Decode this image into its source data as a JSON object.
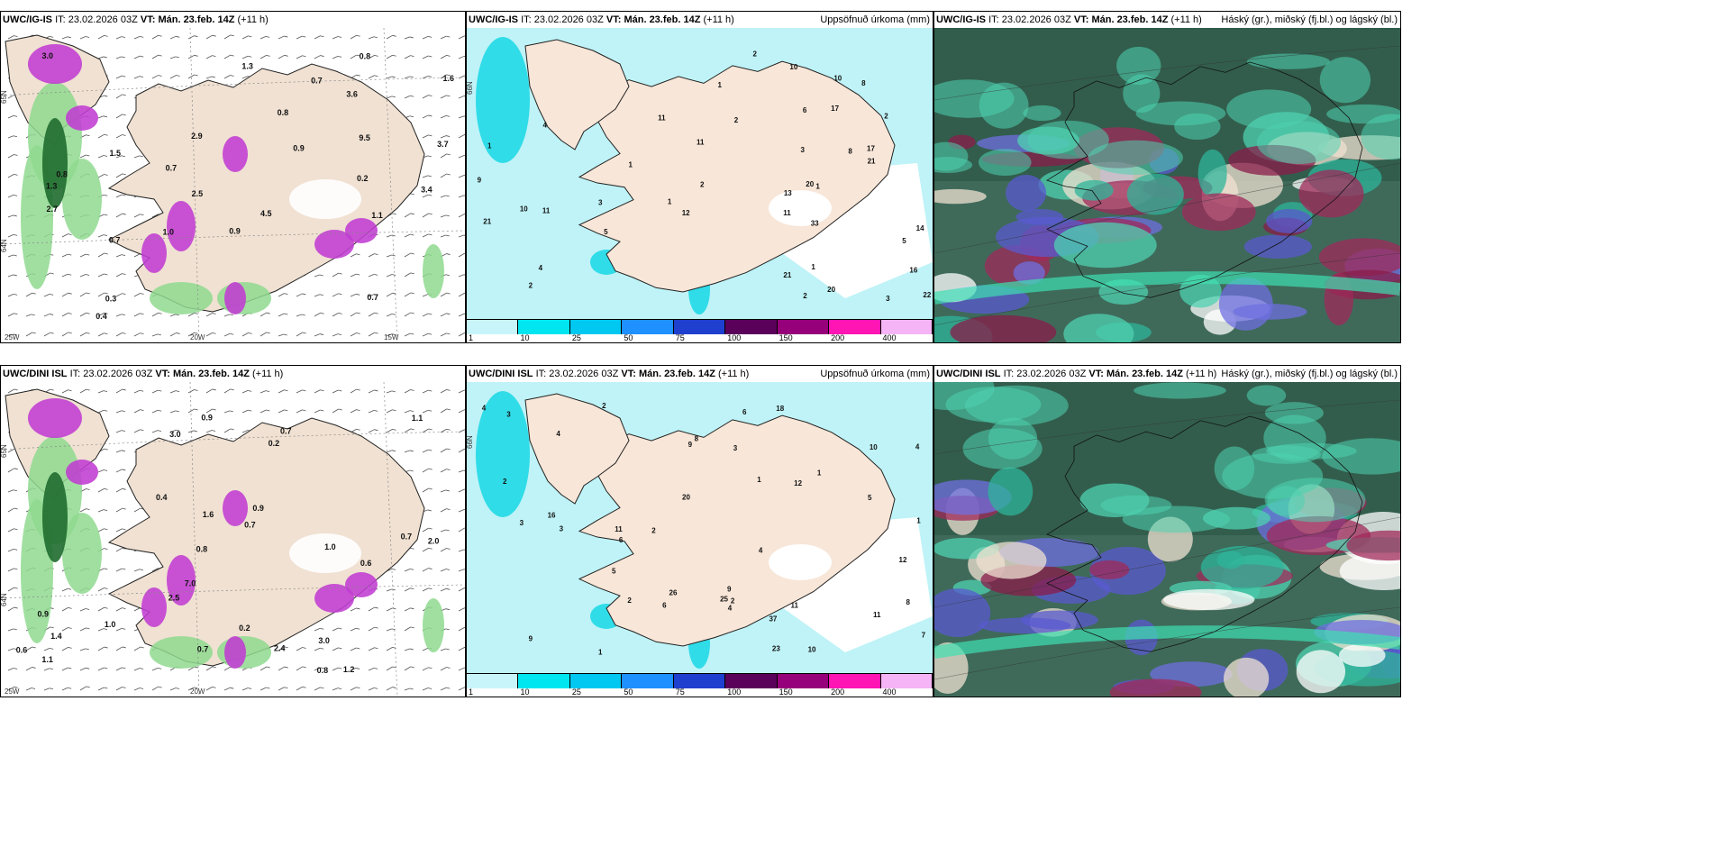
{
  "legend": {
    "ticks": [
      "1",
      "10",
      "25",
      "50",
      "75",
      "100",
      "150",
      "200",
      "400"
    ],
    "colors": [
      "#c8f5fa",
      "#00e6f0",
      "#00c8f0",
      "#1e90ff",
      "#1f3fcf",
      "#5a005a",
      "#96007a",
      "#ff14b4",
      "#f5b4f5"
    ]
  },
  "rows": [
    {
      "model": "UWC/IG-IS",
      "it_label": "IT:",
      "it": "23.02.2026 03Z",
      "vt_label": "VT:",
      "vt": "Mán. 23.feb. 14Z",
      "lead": "(+11 h)",
      "precip_title": "Uppsöfnuð úrkoma (mm)",
      "cloud_title": "Háský (gr.), miðský (fj.bl.) og lágský (bl.)",
      "lat_labels": [
        "65N",
        "64N",
        "66N"
      ],
      "lon_labels": [
        "25W",
        "20W",
        "15W"
      ],
      "wind_values": [
        "2.7",
        "0.2",
        "3.6",
        "3.4",
        "0.3",
        "1.5",
        "9.5",
        "3.0",
        "0.7",
        "3.7",
        "0.7",
        "0.8",
        "0.7",
        "2.5",
        "0.4",
        "0.9",
        "4.5",
        "1.1",
        "0.8",
        "0.9",
        "1.0",
        "0.8",
        "1.3",
        "1.3",
        "2.9",
        "1.6",
        "0.7"
      ],
      "precip_values": [
        "11",
        "14",
        "8",
        "5",
        "21",
        "17",
        "17",
        "11",
        "16",
        "20",
        "20",
        "13",
        "21",
        "33",
        "5",
        "3",
        "8",
        "10",
        "10",
        "11",
        "12",
        "9",
        "3",
        "10",
        "21",
        "4",
        "4",
        "6",
        "22",
        "11",
        "2",
        "2",
        "1",
        "1",
        "1",
        "2",
        "2",
        "2",
        "1",
        "2",
        "1",
        "3",
        "1"
      ]
    },
    {
      "model": "UWC/DINI ISL",
      "it_label": "IT:",
      "it": "23.02.2026 03Z",
      "vt_label": "VT:",
      "vt": "Mán. 23.feb. 14Z",
      "lead": "(+11 h)",
      "precip_title": "Uppsöfnuð úrkoma (mm)",
      "cloud_title": "Háský (gr.), miðský (fj.bl.) og lágský (bl.)",
      "lat_labels": [
        "65N",
        "64N",
        "66N"
      ],
      "lon_labels": [
        "25W",
        "20W"
      ],
      "wind_values": [
        "3.0",
        "0.2",
        "0.8",
        "2.0",
        "0.6",
        "0.2",
        "0.7",
        "0.6",
        "0.9",
        "1.6",
        "0.7",
        "2.5",
        "0.4",
        "1.0",
        "1.2",
        "0.9",
        "0.7",
        "2.4",
        "1.4",
        "7.0",
        "1.0",
        "0.7",
        "0.9",
        "1.1",
        "3.0",
        "0.8",
        "1.1"
      ],
      "precip_values": [
        "11",
        "8",
        "9",
        "6",
        "11",
        "12",
        "10",
        "7",
        "4",
        "37",
        "16",
        "11",
        "18",
        "25",
        "26",
        "9",
        "9",
        "10",
        "2",
        "2",
        "4",
        "23",
        "5",
        "3",
        "6",
        "5",
        "8",
        "12",
        "6",
        "4",
        "2",
        "1",
        "1",
        "4",
        "3",
        "4",
        "20",
        "1",
        "2",
        "2",
        "3",
        "3",
        "1"
      ]
    }
  ]
}
